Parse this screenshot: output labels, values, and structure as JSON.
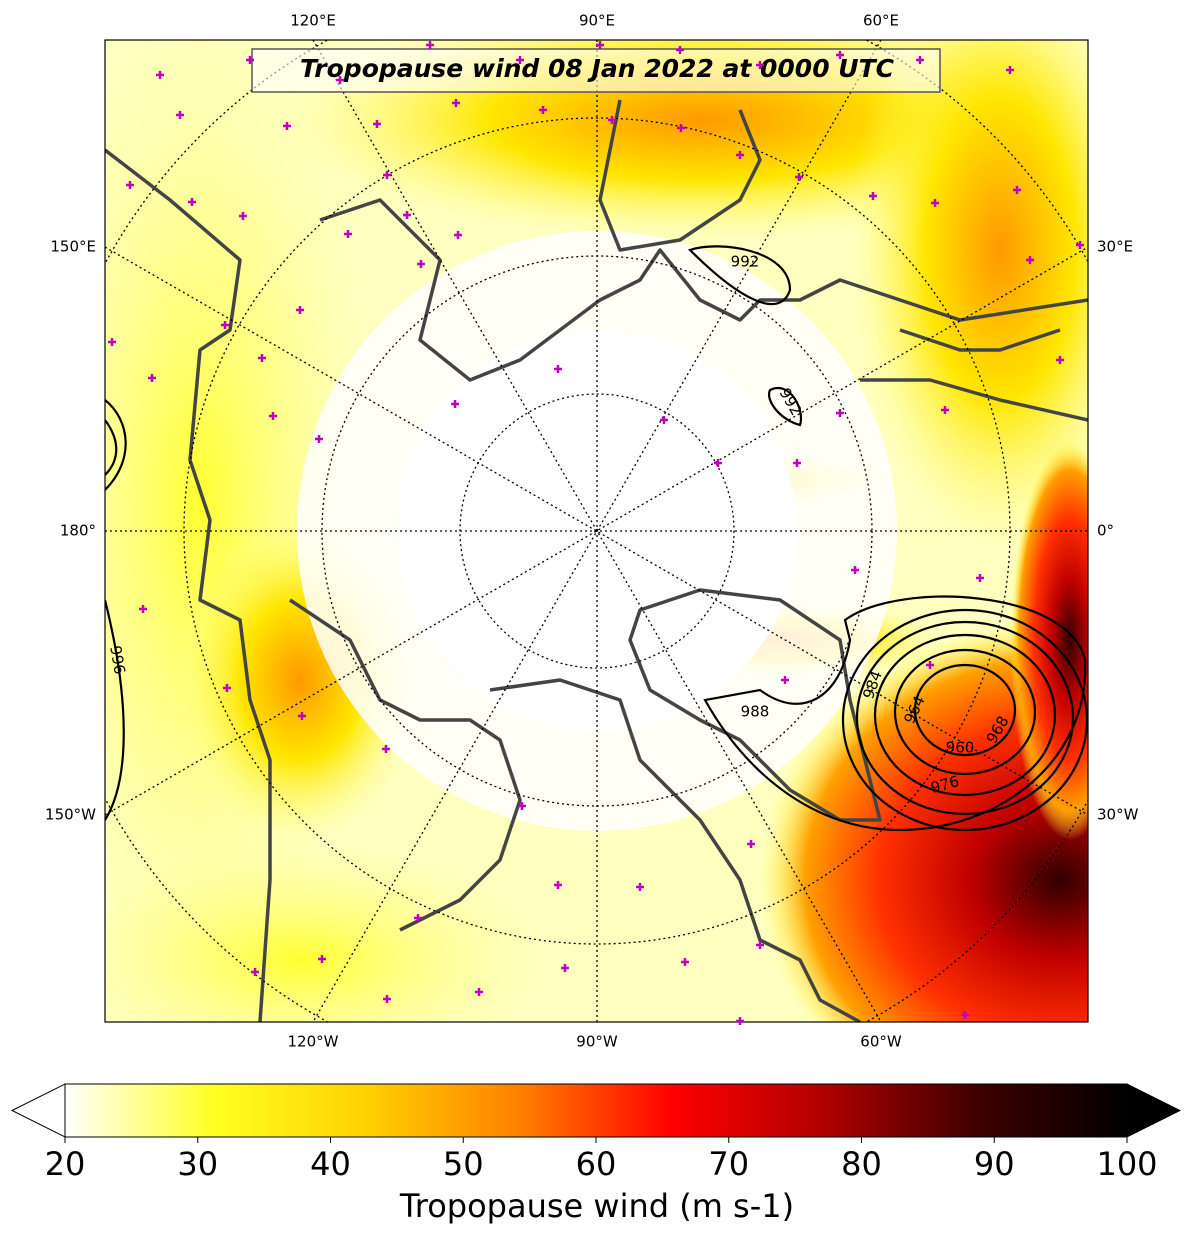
{
  "title": "Tropopause wind 08 Jan 2022 at 0000 UTC",
  "lon_labels": {
    "top": [
      "120°E",
      "90°E",
      "60°E"
    ],
    "bottom": [
      "120°W",
      "90°W",
      "60°W"
    ],
    "left": [
      "150°E",
      "180°",
      "150°W"
    ],
    "right": [
      "30°E",
      "0°",
      "30°W"
    ]
  },
  "contour_labels": [
    "992",
    "992",
    "988",
    "984",
    "964",
    "960",
    "968",
    "976",
    "996"
  ],
  "colorbar": {
    "label": "Tropopause wind (m s-1)",
    "lim": [
      20,
      100
    ],
    "ticks": [
      20,
      30,
      40,
      50,
      60,
      70,
      80,
      90,
      100
    ],
    "colormap": [
      "#ffffff",
      "#ffff20",
      "#ffd000",
      "#ff8000",
      "#ff0000",
      "#b00000",
      "#400000",
      "#000000"
    ]
  }
}
